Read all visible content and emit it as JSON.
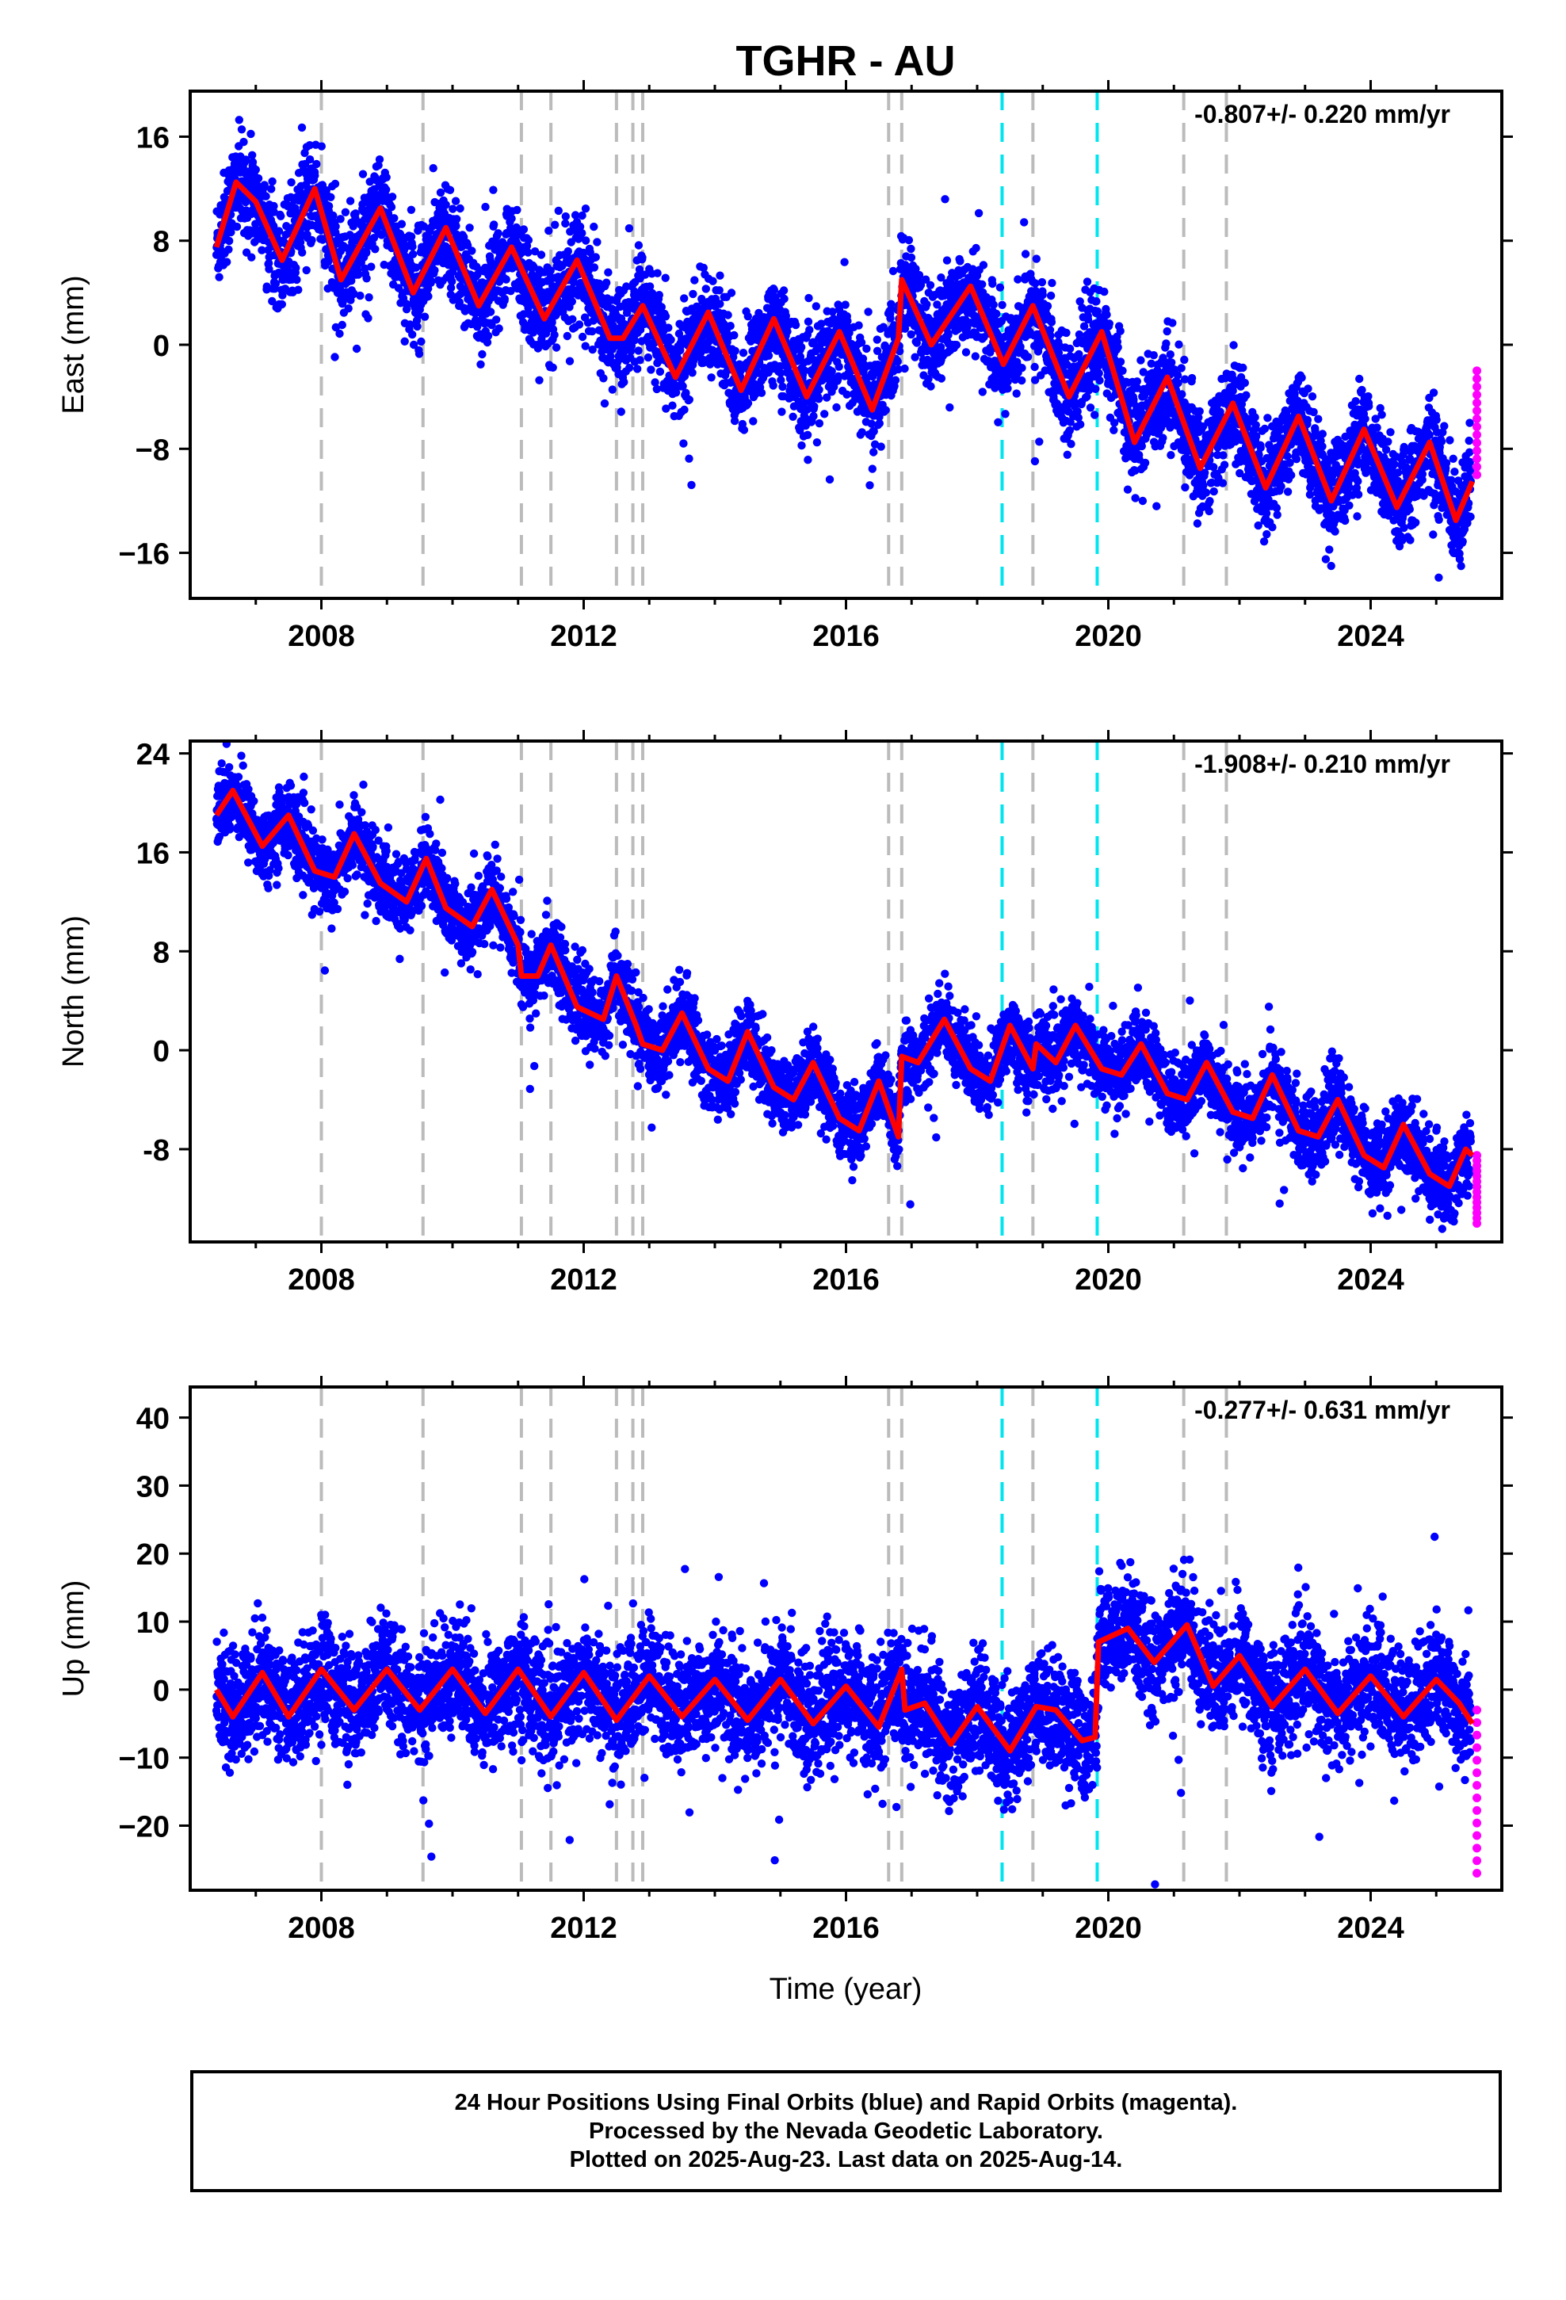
{
  "chart_data": {
    "type": "scatter",
    "title": "TGHR - AU",
    "xlabel": "Time (year)",
    "x_range": [
      2006.0,
      2026.0
    ],
    "x_ticks": [
      2008,
      2012,
      2016,
      2020,
      2024
    ],
    "colors": {
      "final": "#0000ff",
      "rapid": "#ff00ff",
      "model": "#ff0000",
      "offset_gray": "#bbbbbb",
      "offset_cyan": "#00e5ee"
    },
    "offsets_gray": [
      2008.0,
      2009.55,
      2011.05,
      2011.5,
      2012.5,
      2012.75,
      2012.9,
      2016.65,
      2016.85,
      2018.85,
      2021.15,
      2021.8
    ],
    "offsets_cyan": [
      2018.38,
      2019.83
    ],
    "panels": [
      {
        "ylabel": "East (mm)",
        "rate": "-0.807+/- 0.220 mm/yr",
        "ylim": [
          -19.5,
          19.5
        ],
        "yticks": [
          16,
          8,
          0,
          -8,
          -16
        ],
        "ytick_labels": [
          "16",
          "8",
          "0",
          "−8",
          "−16"
        ],
        "model": [
          [
            2006.4,
            7.5
          ],
          [
            2006.7,
            12.5
          ],
          [
            2007.0,
            11.0
          ],
          [
            2007.4,
            6.5
          ],
          [
            2007.9,
            12.0
          ],
          [
            2008.3,
            5.0
          ],
          [
            2008.9,
            10.5
          ],
          [
            2009.4,
            4.0
          ],
          [
            2009.9,
            9.0
          ],
          [
            2010.4,
            3.0
          ],
          [
            2010.9,
            7.5
          ],
          [
            2011.4,
            2.0
          ],
          [
            2011.9,
            6.5
          ],
          [
            2012.4,
            0.5
          ],
          [
            2012.6,
            0.5
          ],
          [
            2012.9,
            3.0
          ],
          [
            2013.4,
            -2.5
          ],
          [
            2013.9,
            2.5
          ],
          [
            2014.4,
            -3.5
          ],
          [
            2014.9,
            2.0
          ],
          [
            2015.4,
            -4.0
          ],
          [
            2015.9,
            1.0
          ],
          [
            2016.4,
            -5.0
          ],
          [
            2016.8,
            0.5
          ],
          [
            2016.85,
            5.0
          ],
          [
            2017.3,
            0.0
          ],
          [
            2017.9,
            4.5
          ],
          [
            2018.4,
            -1.5
          ],
          [
            2018.85,
            3.0
          ],
          [
            2019.4,
            -4.0
          ],
          [
            2019.9,
            1.0
          ],
          [
            2020.4,
            -7.5
          ],
          [
            2020.9,
            -2.5
          ],
          [
            2021.4,
            -9.5
          ],
          [
            2021.9,
            -4.5
          ],
          [
            2022.4,
            -11.0
          ],
          [
            2022.9,
            -5.5
          ],
          [
            2023.4,
            -12.0
          ],
          [
            2023.9,
            -6.5
          ],
          [
            2024.4,
            -12.5
          ],
          [
            2024.9,
            -7.5
          ],
          [
            2025.3,
            -13.5
          ],
          [
            2025.55,
            -10.5
          ]
        ],
        "rapid_range": [
          -10.0,
          -2.0
        ]
      },
      {
        "ylabel": "North (mm)",
        "rate": "-1.908+/- 0.210 mm/yr",
        "ylim": [
          -15.5,
          25.0
        ],
        "yticks": [
          24,
          16,
          8,
          0,
          -8
        ],
        "ytick_labels": [
          "24",
          "16",
          "8",
          "0",
          "-8"
        ],
        "model": [
          [
            2006.4,
            19.0
          ],
          [
            2006.65,
            21.0
          ],
          [
            2007.1,
            16.5
          ],
          [
            2007.5,
            19.0
          ],
          [
            2007.9,
            14.5
          ],
          [
            2008.2,
            14.0
          ],
          [
            2008.5,
            17.5
          ],
          [
            2008.9,
            13.5
          ],
          [
            2009.3,
            12.0
          ],
          [
            2009.6,
            15.5
          ],
          [
            2009.9,
            11.5
          ],
          [
            2010.3,
            10.0
          ],
          [
            2010.6,
            13.0
          ],
          [
            2011.0,
            8.5
          ],
          [
            2011.05,
            6.0
          ],
          [
            2011.3,
            6.0
          ],
          [
            2011.5,
            8.5
          ],
          [
            2011.9,
            3.5
          ],
          [
            2012.3,
            2.5
          ],
          [
            2012.5,
            6.0
          ],
          [
            2012.8,
            2.0
          ],
          [
            2012.9,
            0.5
          ],
          [
            2013.2,
            0.0
          ],
          [
            2013.5,
            3.0
          ],
          [
            2013.9,
            -1.5
          ],
          [
            2014.2,
            -2.5
          ],
          [
            2014.5,
            1.5
          ],
          [
            2014.9,
            -3.0
          ],
          [
            2015.2,
            -4.0
          ],
          [
            2015.5,
            -1.0
          ],
          [
            2015.9,
            -5.5
          ],
          [
            2016.2,
            -6.5
          ],
          [
            2016.5,
            -2.5
          ],
          [
            2016.8,
            -7.0
          ],
          [
            2016.85,
            -0.5
          ],
          [
            2017.1,
            -1.0
          ],
          [
            2017.5,
            2.5
          ],
          [
            2017.9,
            -1.5
          ],
          [
            2018.2,
            -2.5
          ],
          [
            2018.5,
            2.0
          ],
          [
            2018.85,
            -1.5
          ],
          [
            2018.9,
            0.5
          ],
          [
            2019.2,
            -1.0
          ],
          [
            2019.5,
            2.0
          ],
          [
            2019.9,
            -1.5
          ],
          [
            2020.2,
            -2.0
          ],
          [
            2020.5,
            0.5
          ],
          [
            2020.9,
            -3.5
          ],
          [
            2021.2,
            -4.0
          ],
          [
            2021.5,
            -1.0
          ],
          [
            2021.9,
            -5.0
          ],
          [
            2022.2,
            -5.5
          ],
          [
            2022.5,
            -2.0
          ],
          [
            2022.9,
            -6.5
          ],
          [
            2023.2,
            -7.0
          ],
          [
            2023.5,
            -4.0
          ],
          [
            2023.9,
            -8.5
          ],
          [
            2024.2,
            -9.5
          ],
          [
            2024.5,
            -6.0
          ],
          [
            2024.9,
            -10.0
          ],
          [
            2025.2,
            -11.0
          ],
          [
            2025.45,
            -8.0
          ],
          [
            2025.55,
            -8.5
          ]
        ],
        "rapid_range": [
          -14.0,
          -8.5
        ]
      },
      {
        "ylabel": "Up (mm)",
        "rate": "-0.277+/- 0.631 mm/yr",
        "ylim": [
          -29.5,
          44.5
        ],
        "yticks": [
          40,
          30,
          20,
          10,
          0,
          -10,
          -20
        ],
        "ytick_labels": [
          "40",
          "30",
          "20",
          "10",
          "0",
          "−10",
          "−20"
        ],
        "model": [
          [
            2006.4,
            0.0
          ],
          [
            2006.65,
            -4.0
          ],
          [
            2007.1,
            2.5
          ],
          [
            2007.5,
            -4.0
          ],
          [
            2008.0,
            3.0
          ],
          [
            2008.5,
            -3.0
          ],
          [
            2009.0,
            3.0
          ],
          [
            2009.5,
            -3.0
          ],
          [
            2010.0,
            3.0
          ],
          [
            2010.5,
            -3.5
          ],
          [
            2011.0,
            3.0
          ],
          [
            2011.5,
            -4.0
          ],
          [
            2012.0,
            2.5
          ],
          [
            2012.5,
            -4.5
          ],
          [
            2013.0,
            2.0
          ],
          [
            2013.5,
            -4.0
          ],
          [
            2014.0,
            1.5
          ],
          [
            2014.5,
            -4.5
          ],
          [
            2015.0,
            1.5
          ],
          [
            2015.5,
            -5.0
          ],
          [
            2016.0,
            0.5
          ],
          [
            2016.5,
            -5.5
          ],
          [
            2016.85,
            3.0
          ],
          [
            2016.9,
            -3.0
          ],
          [
            2017.2,
            -2.0
          ],
          [
            2017.6,
            -8.0
          ],
          [
            2018.0,
            -2.5
          ],
          [
            2018.5,
            -9.0
          ],
          [
            2018.9,
            -2.5
          ],
          [
            2019.2,
            -3.0
          ],
          [
            2019.6,
            -7.5
          ],
          [
            2019.8,
            -7.0
          ],
          [
            2019.85,
            7.0
          ],
          [
            2020.3,
            9.0
          ],
          [
            2020.7,
            4.0
          ],
          [
            2021.2,
            9.5
          ],
          [
            2021.6,
            0.5
          ],
          [
            2022.0,
            5.0
          ],
          [
            2022.5,
            -2.5
          ],
          [
            2023.0,
            3.0
          ],
          [
            2023.5,
            -3.5
          ],
          [
            2024.0,
            2.0
          ],
          [
            2024.5,
            -4.0
          ],
          [
            2025.0,
            1.5
          ],
          [
            2025.35,
            -2.0
          ],
          [
            2025.55,
            -5.0
          ]
        ],
        "rapid_range": [
          -27.0,
          -3.0
        ]
      }
    ]
  },
  "footer": {
    "line1": "24 Hour Positions Using Final Orbits (blue) and Rapid Orbits (magenta).",
    "line2": "Processed by the Nevada Geodetic Laboratory.",
    "line3": "Plotted on 2025-Aug-23. Last data on 2025-Aug-14."
  }
}
